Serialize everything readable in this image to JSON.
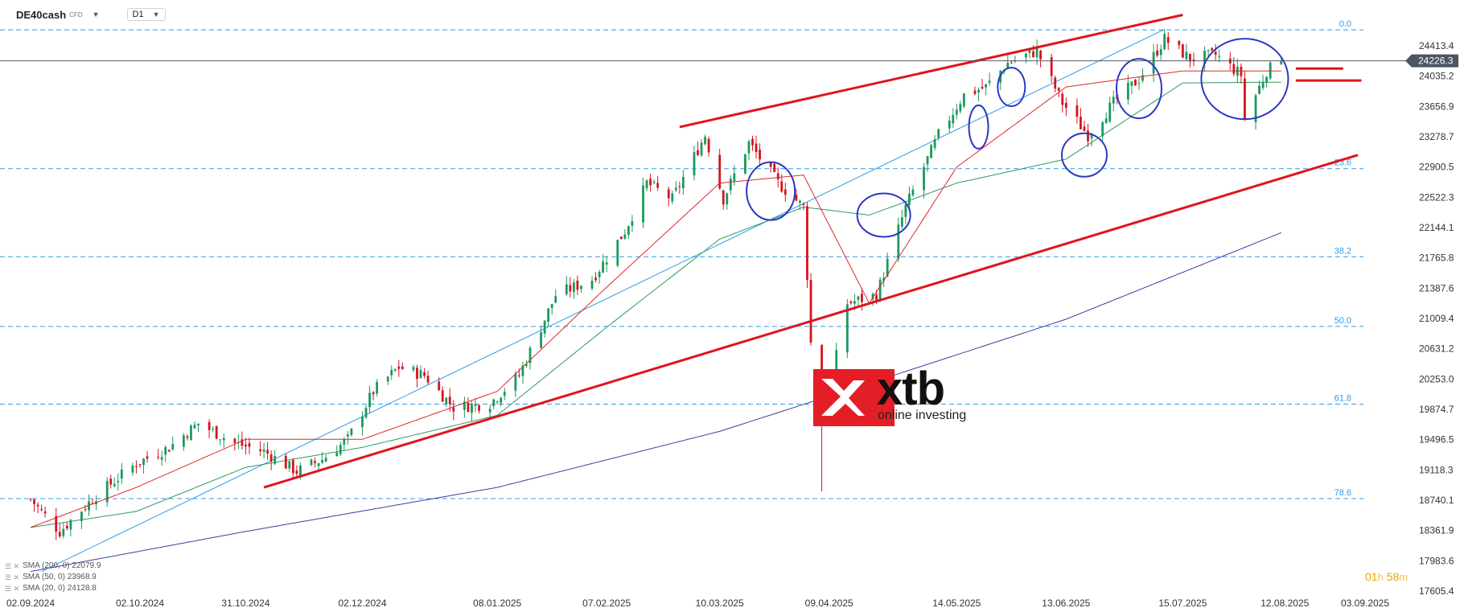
{
  "header": {
    "symbol": "DE40cash",
    "badge": "CFD",
    "timeframe": "D1"
  },
  "logo": {
    "brand": "xtb",
    "tagline": "online investing"
  },
  "timer": {
    "hours": "01",
    "hours_unit": "h",
    "minutes": "58",
    "minutes_unit": "m"
  },
  "legend": [
    {
      "label": "SMA (200, 0) 22079.9"
    },
    {
      "label": "SMA (50, 0) 23968.9"
    },
    {
      "label": "SMA (20, 0) 24128.8"
    }
  ],
  "colors": {
    "bull": "#1a9a5e",
    "bear": "#d5141e",
    "sma20": "#e02828",
    "sma50": "#2e9a62",
    "sma200": "#3d3f9e",
    "fib": "#2e9be8",
    "channel": "#e0141e",
    "fan": "#2e9be8",
    "highlight": "#2b38c2",
    "price_tag": "#4b5563"
  },
  "chart_data": {
    "type": "candlestick",
    "instrument": "DE40cash",
    "timeframe": "D1",
    "current_price": "24226.3",
    "y_axis_labels": [
      "24413.4",
      "24035.2",
      "23656.9",
      "23278.7",
      "22900.5",
      "22522.3",
      "22144.1",
      "21765.8",
      "21387.6",
      "21009.4",
      "20631.2",
      "20253.0",
      "19874.7",
      "19496.5",
      "19118.3",
      "18740.1",
      "18361.9",
      "17983.6",
      "17605.4"
    ],
    "x_axis_labels": [
      "02.09.2024",
      "02.10.2024",
      "31.10.2024",
      "02.12.2024",
      "08.01.2025",
      "07.02.2025",
      "10.03.2025",
      "09.04.2025",
      "14.05.2025",
      "13.06.2025",
      "15.07.2025",
      "12.08.2025",
      "03.09.2025"
    ],
    "fibonacci": [
      {
        "label": "0.0",
        "price": 24613
      },
      {
        "label": "23.6",
        "price": 22880
      },
      {
        "label": "38.2",
        "price": 21780
      },
      {
        "label": "50.0",
        "price": 20910
      },
      {
        "label": "61.8",
        "price": 19940
      },
      {
        "label": "78.6",
        "price": 18760
      }
    ],
    "anchors": [
      [
        "2024-09-02",
        18750
      ],
      [
        "2024-09-10",
        18350
      ],
      [
        "2024-09-20",
        18800
      ],
      [
        "2024-10-01",
        19200
      ],
      [
        "2024-10-10",
        19400
      ],
      [
        "2024-10-18",
        19700
      ],
      [
        "2024-10-28",
        19450
      ],
      [
        "2024-11-05",
        19350
      ],
      [
        "2024-11-14",
        19100
      ],
      [
        "2024-11-21",
        19250
      ],
      [
        "2024-11-28",
        19500
      ],
      [
        "2024-12-05",
        20100
      ],
      [
        "2024-12-12",
        20400
      ],
      [
        "2024-12-19",
        20300
      ],
      [
        "2024-12-27",
        19900
      ],
      [
        "2025-01-06",
        19950
      ],
      [
        "2025-01-14",
        20300
      ],
      [
        "2025-01-24",
        21300
      ],
      [
        "2025-02-03",
        21500
      ],
      [
        "2025-02-12",
        22100
      ],
      [
        "2025-02-18",
        22700
      ],
      [
        "2025-02-25",
        22500
      ],
      [
        "2025-03-06",
        23300
      ],
      [
        "2025-03-11",
        22500
      ],
      [
        "2025-03-18",
        23200
      ],
      [
        "2025-03-26",
        22700
      ],
      [
        "2025-04-02",
        22400
      ],
      [
        "2025-04-04",
        20700
      ],
      [
        "2025-04-07",
        19800
      ],
      [
        "2025-04-09",
        20100
      ],
      [
        "2025-04-14",
        21200
      ],
      [
        "2025-04-22",
        21300
      ],
      [
        "2025-04-30",
        22400
      ],
      [
        "2025-05-09",
        23300
      ],
      [
        "2025-05-16",
        23800
      ],
      [
        "2025-05-22",
        23900
      ],
      [
        "2025-05-28",
        24200
      ],
      [
        "2025-06-05",
        24350
      ],
      [
        "2025-06-12",
        23700
      ],
      [
        "2025-06-19",
        23300
      ],
      [
        "2025-06-26",
        23700
      ],
      [
        "2025-07-03",
        24000
      ],
      [
        "2025-07-10",
        24500
      ],
      [
        "2025-07-17",
        24250
      ],
      [
        "2025-07-24",
        24300
      ],
      [
        "2025-07-31",
        24050
      ],
      [
        "2025-08-01",
        23500
      ],
      [
        "2025-08-07",
        24100
      ],
      [
        "2025-08-11",
        24226
      ]
    ],
    "wicks": [
      {
        "date": "2025-04-07",
        "low": 18850
      },
      {
        "date": "2025-07-10",
        "high": 24620
      }
    ],
    "sma20_anchors": [
      [
        "2024-09-02",
        18400
      ],
      [
        "2024-10-01",
        18900
      ],
      [
        "2024-10-31",
        19500
      ],
      [
        "2024-12-02",
        19500
      ],
      [
        "2025-01-08",
        20100
      ],
      [
        "2025-02-07",
        21400
      ],
      [
        "2025-03-10",
        22700
      ],
      [
        "2025-04-02",
        22800
      ],
      [
        "2025-04-20",
        21200
      ],
      [
        "2025-05-14",
        22900
      ],
      [
        "2025-06-13",
        23900
      ],
      [
        "2025-07-15",
        24100
      ],
      [
        "2025-08-11",
        24100
      ]
    ],
    "sma50_anchors": [
      [
        "2024-09-02",
        18400
      ],
      [
        "2024-10-01",
        18600
      ],
      [
        "2024-10-31",
        19150
      ],
      [
        "2024-12-02",
        19400
      ],
      [
        "2025-01-08",
        19800
      ],
      [
        "2025-02-07",
        20900
      ],
      [
        "2025-03-10",
        22000
      ],
      [
        "2025-04-02",
        22400
      ],
      [
        "2025-04-20",
        22300
      ],
      [
        "2025-05-14",
        22700
      ],
      [
        "2025-06-13",
        23000
      ],
      [
        "2025-07-15",
        23950
      ],
      [
        "2025-08-11",
        23960
      ]
    ],
    "sma200_anchors": [
      [
        "2024-09-02",
        17850
      ],
      [
        "2024-10-31",
        18350
      ],
      [
        "2025-01-08",
        18900
      ],
      [
        "2025-03-10",
        19600
      ],
      [
        "2025-04-20",
        20200
      ],
      [
        "2025-06-13",
        21000
      ],
      [
        "2025-08-11",
        22080
      ]
    ],
    "channel_upper": [
      [
        "2025-02-27",
        23400
      ],
      [
        "2025-07-15",
        24800
      ]
    ],
    "channel_lower": [
      [
        "2024-11-05",
        18900
      ],
      [
        "2025-09-01",
        23050
      ]
    ],
    "fan_line": [
      [
        "2024-09-05",
        17850
      ],
      [
        "2025-07-10",
        24620
      ]
    ],
    "highlight_circles": [
      {
        "date": "2025-03-24",
        "price": 22600,
        "rx": 30,
        "ry": 36
      },
      {
        "date": "2025-04-24",
        "price": 22300,
        "rx": 33,
        "ry": 27
      },
      {
        "date": "2025-05-20",
        "price": 23400,
        "rx": 12,
        "ry": 27
      },
      {
        "date": "2025-05-29",
        "price": 23900,
        "rx": 17,
        "ry": 24
      },
      {
        "date": "2025-06-18",
        "price": 23050,
        "rx": 28,
        "ry": 27
      },
      {
        "date": "2025-07-03",
        "price": 23880,
        "rx": 28,
        "ry": 37
      },
      {
        "date": "2025-08-01",
        "price": 24000,
        "rx": 54,
        "ry": 50
      }
    ],
    "marker_lines": [
      {
        "price": 24130,
        "start": "2025-08-15",
        "end": "2025-08-28"
      },
      {
        "price": 23980,
        "start": "2025-08-15",
        "end": "2025-09-02"
      }
    ]
  }
}
